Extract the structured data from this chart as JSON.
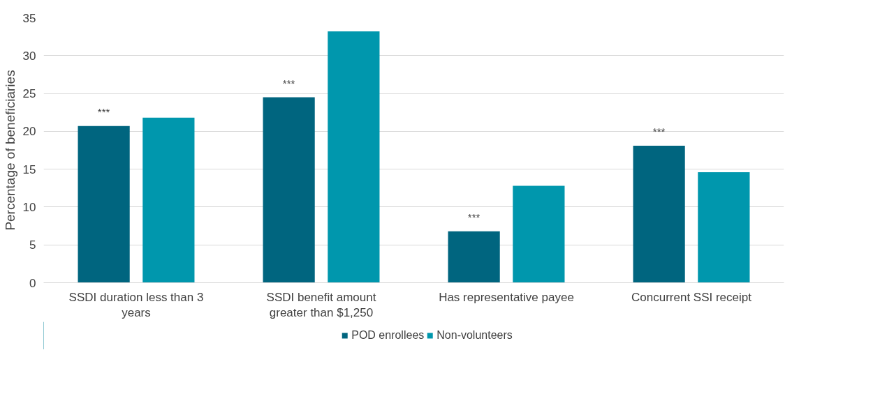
{
  "chart_data": {
    "type": "bar",
    "ylabel": "Percentage of beneficiaries",
    "categories": [
      "SSDI duration less than 3 years",
      "SSDI benefit amount greater than $1,250",
      "Has representative payee",
      "Concurrent SSI receipt"
    ],
    "series": [
      {
        "name": "POD enrollees",
        "color": "#00657f",
        "values": [
          20.7,
          24.5,
          6.8,
          18.1
        ]
      },
      {
        "name": "Non-volunteers",
        "color": "#0097ad",
        "values": [
          21.8,
          33.2,
          12.8,
          14.6
        ]
      }
    ],
    "annotations": [
      "***",
      "***",
      "***",
      "***"
    ],
    "ylim": [
      0,
      35
    ],
    "yticks": [
      0,
      5,
      10,
      15,
      20,
      25,
      30,
      35
    ],
    "grid": "y",
    "legend": "bottom"
  }
}
